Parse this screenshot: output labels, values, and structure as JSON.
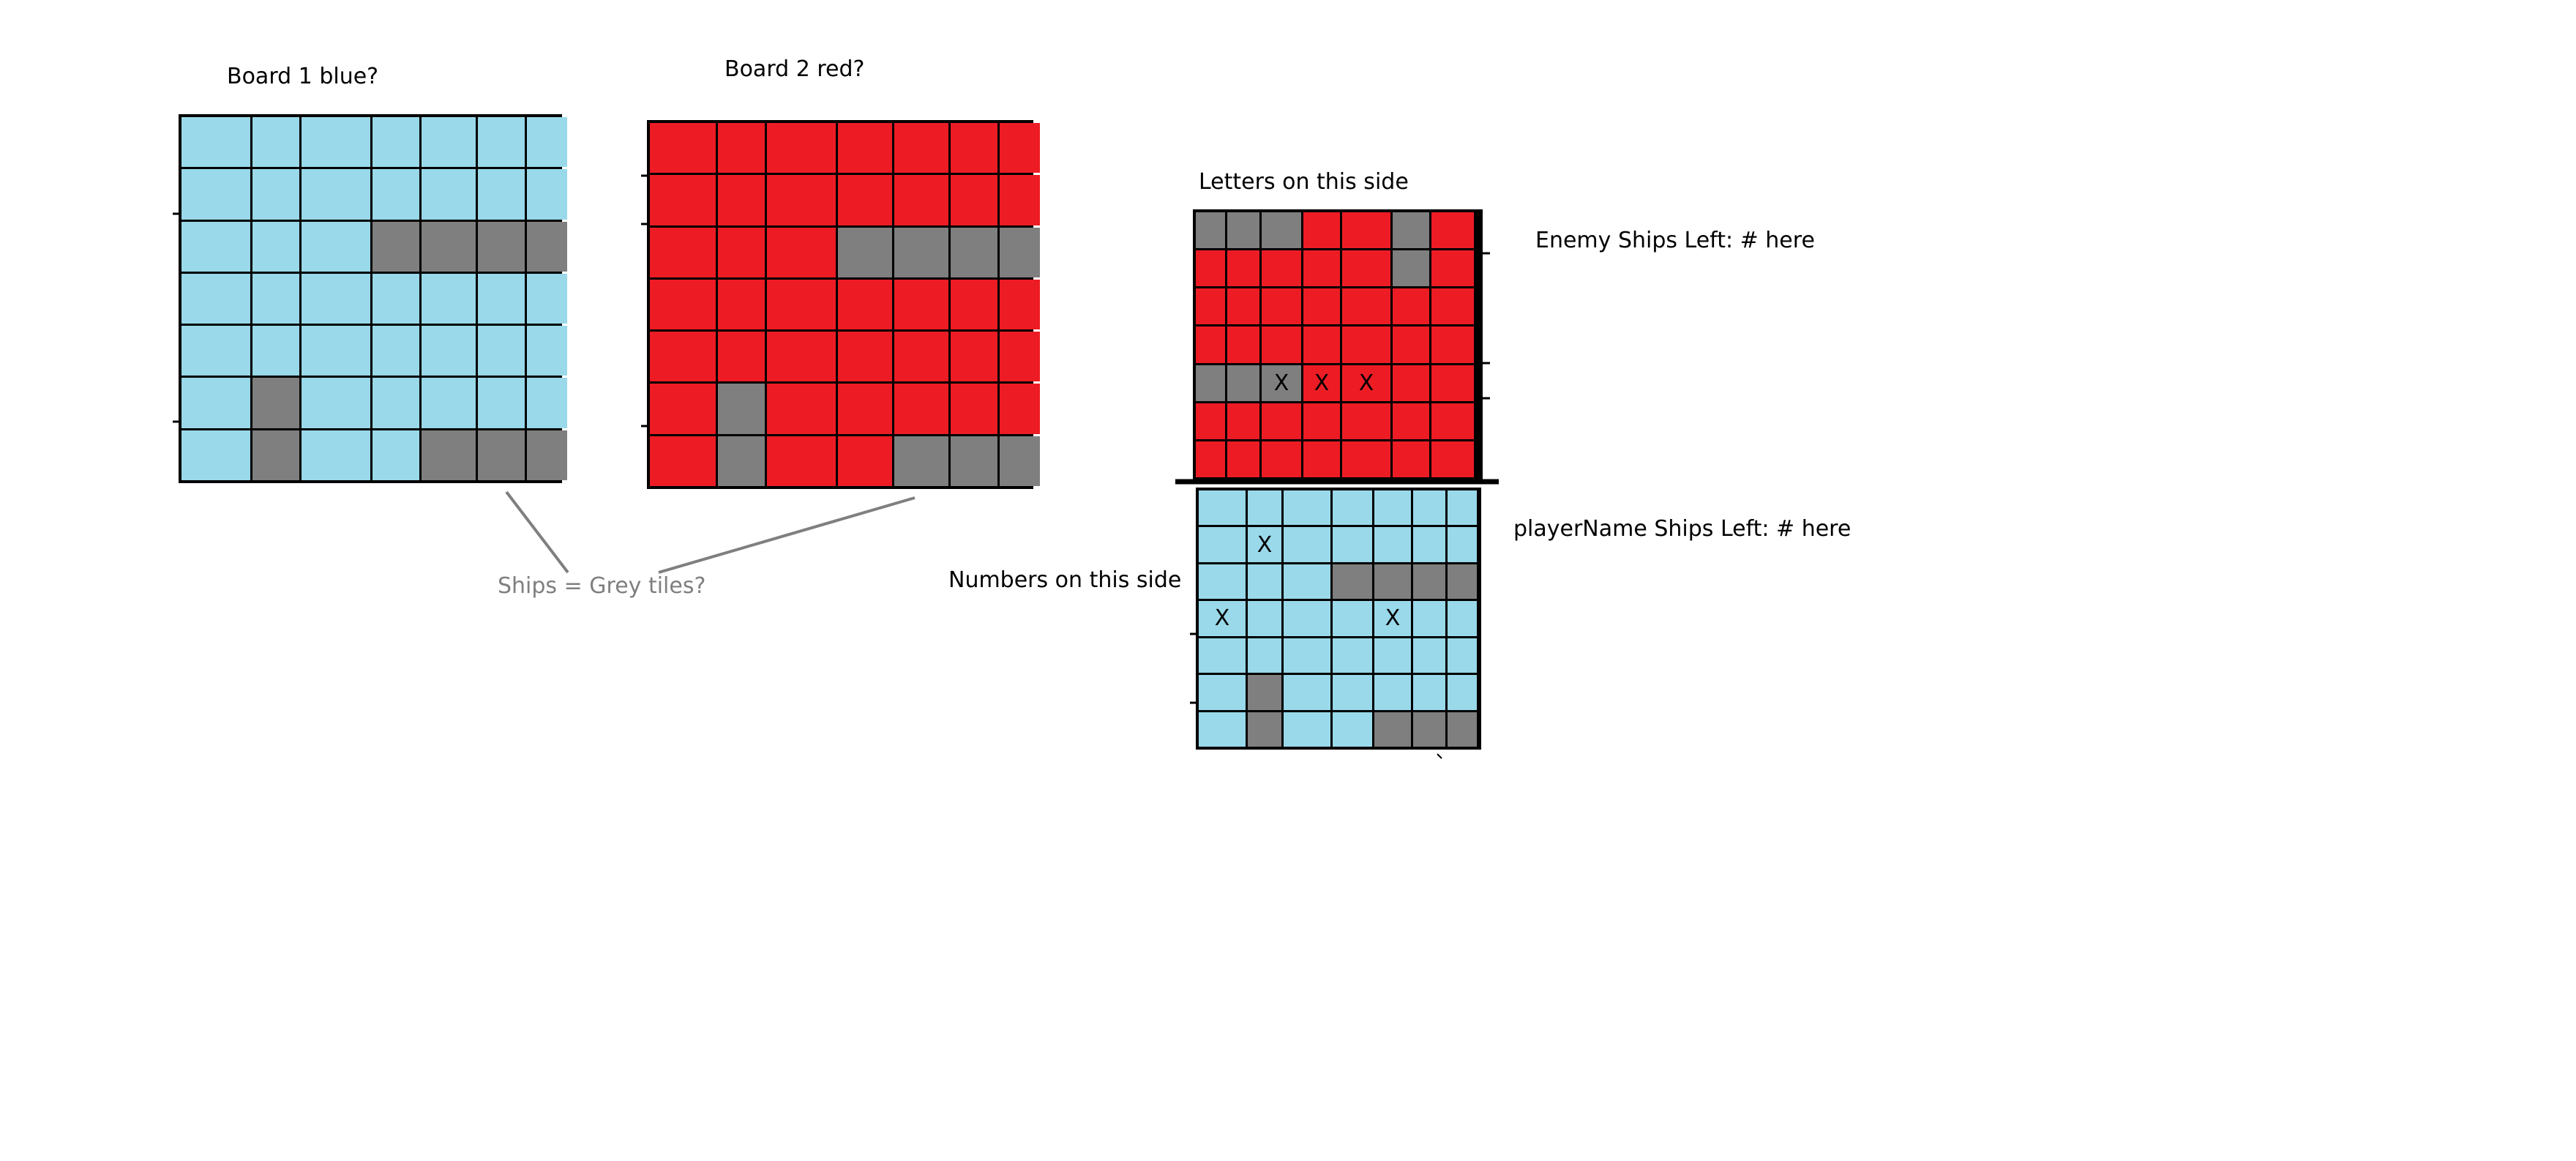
{
  "labels": {
    "board1": "Board 1 blue?",
    "board2": "Board 2 red?",
    "ships_note": "Ships = Grey tiles?",
    "letters_side": "Letters on this side",
    "numbers_side": "Numbers on this side",
    "enemy_ships": "Enemy Ships Left: # here",
    "player_ships": "playerName Ships Left: # here"
  },
  "colors": {
    "blue": "#99d9ea",
    "red": "#ed1c24",
    "grey": "#7f7f7f",
    "line": "#000000",
    "note": "#7f7f7f"
  },
  "boards": {
    "board1": [
      "bbbbbbb",
      "bbbbbbb",
      "bbbgggg",
      "bbbbbbb",
      "bbbbbbb",
      "bgbbbbb",
      "bgbbggg"
    ],
    "board2": [
      "rrrrrrr",
      "rrrrrrr",
      "rrrgggg",
      "rrrrrrr",
      "rrrrrrr",
      "rgrrrrr",
      "rgrrggg"
    ],
    "enemy": [
      "gggrrgr",
      "rrrrrgr",
      "rrrrrrr",
      "rrrrrrr",
      "gggrrrr",
      "rrrrrrr",
      "rrrrrrr"
    ],
    "player": [
      "bbbbbbb",
      "bbbbbbb",
      "bbbgggg",
      "bbbbbbb",
      "bbbbbbb",
      "bgbbbbb",
      "bgbbggg"
    ]
  },
  "marks": {
    "enemy": [
      {
        "row": 4,
        "col": 2,
        "text": "X"
      },
      {
        "row": 4,
        "col": 3,
        "text": "X"
      },
      {
        "row": 4,
        "col": 4,
        "text": "X"
      }
    ],
    "player": [
      {
        "row": 1,
        "col": 1,
        "text": "X"
      },
      {
        "row": 3,
        "col": 0,
        "text": "X"
      },
      {
        "row": 3,
        "col": 4,
        "text": "X"
      }
    ]
  }
}
